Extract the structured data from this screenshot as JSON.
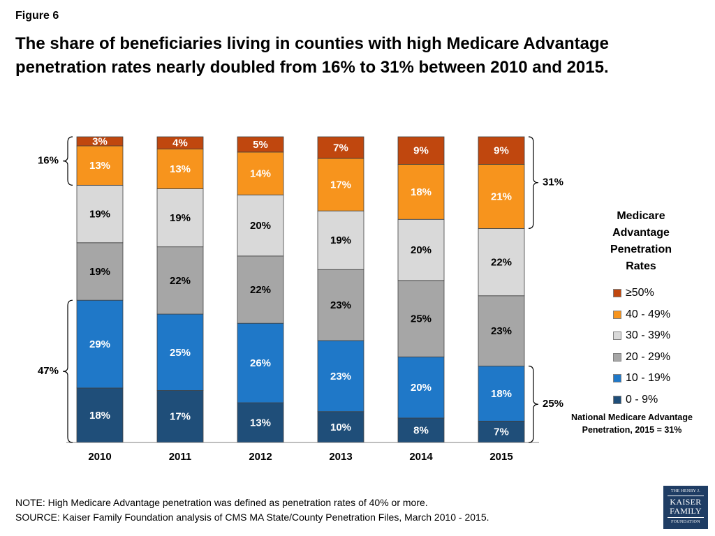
{
  "figure_label": "Figure 6",
  "title": "The share of beneficiaries living in counties with high Medicare Advantage penetration rates nearly doubled from 16% to 31% between 2010 and 2015.",
  "chart_data": {
    "type": "bar",
    "stacked": true,
    "percent_stacked": true,
    "categories": [
      "2010",
      "2011",
      "2012",
      "2013",
      "2014",
      "2015"
    ],
    "series": [
      {
        "name": "0 - 9%",
        "color": "#1f4e79",
        "values": [
          18,
          17,
          13,
          10,
          8,
          7
        ],
        "labels": [
          "18%",
          "17%",
          "13%",
          "10%",
          "8%",
          "7%"
        ]
      },
      {
        "name": "10 - 19%",
        "color": "#1f78c8",
        "values": [
          29,
          25,
          26,
          23,
          20,
          18
        ],
        "labels": [
          "29%",
          "25%",
          "26%",
          "23%",
          "20%",
          "18%"
        ]
      },
      {
        "name": "20 - 29%",
        "color": "#a6a6a6",
        "values": [
          19,
          22,
          22,
          23,
          25,
          23
        ],
        "labels": [
          "19%",
          "22%",
          "22%",
          "23%",
          "25%",
          "23%"
        ]
      },
      {
        "name": "30 - 39%",
        "color": "#d9d9d9",
        "values": [
          19,
          19,
          20,
          19,
          20,
          22
        ],
        "labels": [
          "19%",
          "19%",
          "20%",
          "19%",
          "20%",
          "22%"
        ]
      },
      {
        "name": "40 - 49%",
        "color": "#f7941d",
        "values": [
          13,
          13,
          14,
          17,
          18,
          21
        ],
        "labels": [
          "13%",
          "13%",
          "14%",
          "17%",
          "18%",
          "21%"
        ]
      },
      {
        "name": "≥50%",
        "color": "#c0470e",
        "values": [
          3,
          4,
          5,
          7,
          9,
          9
        ],
        "labels": [
          "3%",
          "4%",
          "5%",
          "7%",
          "9%",
          "9%"
        ]
      }
    ],
    "legend_title": "Medicare Advantage Penetration Rates",
    "legend_position": "right",
    "annotations": [
      {
        "label": "16%",
        "category": "2010",
        "series": [
          "40 - 49%",
          "≥50%"
        ],
        "side": "left"
      },
      {
        "label": "47%",
        "category": "2010",
        "series": [
          "0 - 9%",
          "10 - 19%"
        ],
        "side": "left"
      },
      {
        "label": "31%",
        "category": "2015",
        "series": [
          "40 - 49%",
          "≥50%"
        ],
        "side": "right"
      },
      {
        "label": "25%",
        "category": "2015",
        "series": [
          "0 - 9%",
          "10 - 19%"
        ],
        "side": "right"
      }
    ],
    "grid": false
  },
  "legend": {
    "title_lines": [
      "Medicare",
      "Advantage",
      "Penetration",
      "Rates"
    ],
    "items": [
      {
        "label": "≥50%",
        "color": "#c0470e"
      },
      {
        "label": "40 - 49%",
        "color": "#f7941d"
      },
      {
        "label": "30 - 39%",
        "color": "#d9d9d9"
      },
      {
        "label": "20 - 29%",
        "color": "#a6a6a6"
      },
      {
        "label": "10 - 19%",
        "color": "#1f78c8"
      },
      {
        "label": "0 - 9%",
        "color": "#1f4e79"
      }
    ]
  },
  "national_note_lines": [
    "National Medicare Advantage",
    "Penetration, 2015 = 31%"
  ],
  "notes": {
    "note": "NOTE: High Medicare Advantage penetration was defined as penetration rates of 40% or more.",
    "source": "SOURCE: Kaiser Family Foundation analysis of CMS MA State/County Penetration Files, March 2010 - 2015."
  },
  "logo": {
    "line1": "THE HENRY J.",
    "line2": "KAISER",
    "line3": "FAMILY",
    "line4": "FOUNDATION"
  }
}
